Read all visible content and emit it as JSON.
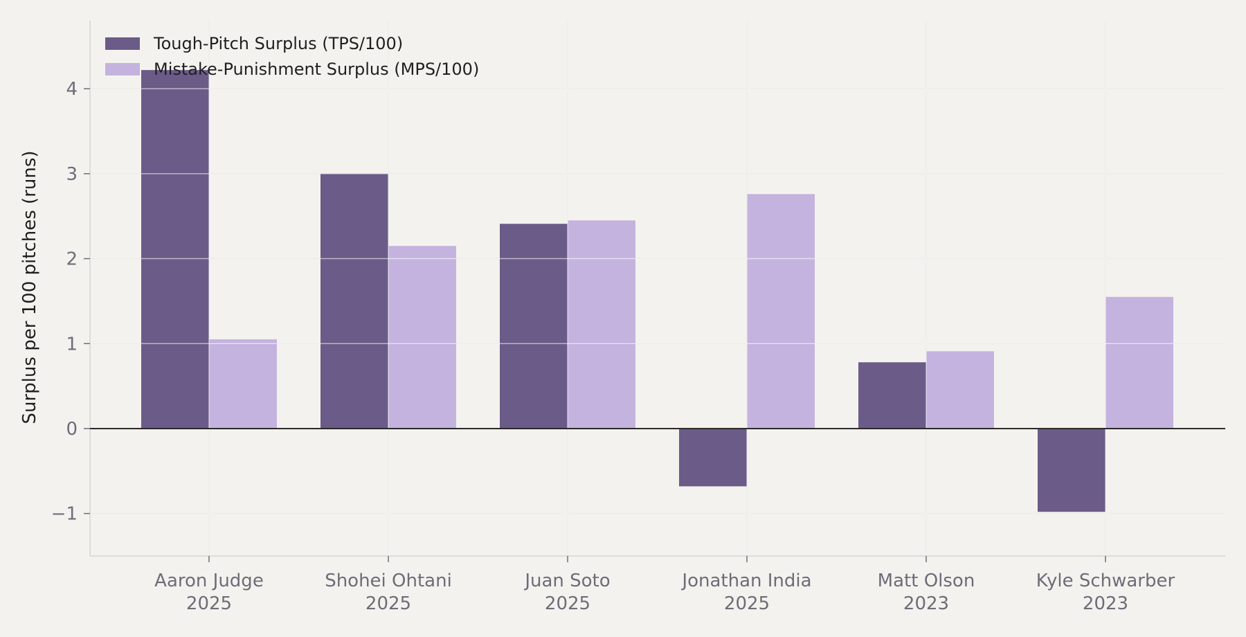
{
  "chart_data": {
    "type": "bar",
    "categories": [
      [
        "Aaron Judge",
        "2025"
      ],
      [
        "Shohei Ohtani",
        "2025"
      ],
      [
        "Juan Soto",
        "2025"
      ],
      [
        "Jonathan India",
        "2025"
      ],
      [
        "Matt Olson",
        "2023"
      ],
      [
        "Kyle Schwarber",
        "2023"
      ]
    ],
    "series": [
      {
        "name": "Tough-Pitch Surplus (TPS/100)",
        "color": "#6b5b88",
        "values": [
          4.22,
          3.0,
          2.41,
          -0.68,
          0.78,
          -0.98
        ]
      },
      {
        "name": "Mistake-Punishment Surplus (MPS/100)",
        "color": "#c4b3df",
        "values": [
          1.05,
          2.15,
          2.45,
          2.76,
          0.91,
          1.55
        ]
      }
    ],
    "title": "",
    "xlabel": "",
    "ylabel": "Surplus per 100 pitches (runs)",
    "ylim": [
      -1.5,
      4.8
    ],
    "yticks": [
      -1,
      0,
      1,
      2,
      3,
      4
    ],
    "ytick_labels": [
      "−1",
      "0",
      "1",
      "2",
      "3",
      "4"
    ],
    "grid": true,
    "legend_position": "top-left"
  }
}
